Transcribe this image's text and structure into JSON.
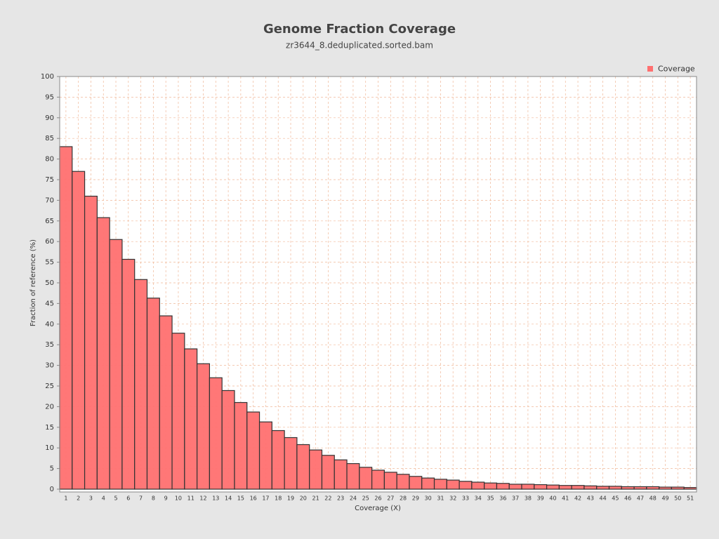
{
  "chart_data": {
    "type": "bar",
    "title": "Genome Fraction Coverage",
    "subtitle": "zr3644_8.deduplicated.sorted.bam",
    "x_label": "Coverage (X)",
    "y_label": "Fraction of reference (%)",
    "categories": [
      "1",
      "2",
      "3",
      "4",
      "5",
      "6",
      "7",
      "8",
      "9",
      "10",
      "11",
      "12",
      "13",
      "14",
      "15",
      "16",
      "17",
      "18",
      "19",
      "20",
      "21",
      "22",
      "23",
      "24",
      "25",
      "26",
      "27",
      "28",
      "29",
      "30",
      "31",
      "32",
      "33",
      "34",
      "35",
      "36",
      "37",
      "38",
      "39",
      "40",
      "41",
      "42",
      "43",
      "44",
      "45",
      "46",
      "47",
      "48",
      "49",
      "50",
      "51"
    ],
    "series": [
      {
        "name": "Coverage",
        "color": "#ff7070",
        "values": [
          83,
          77,
          71,
          65.8,
          60.5,
          55.7,
          50.8,
          46.3,
          42,
          37.8,
          34,
          30.4,
          27,
          23.9,
          21,
          18.7,
          16.3,
          14.2,
          12.5,
          10.8,
          9.5,
          8.2,
          7.1,
          6.2,
          5.3,
          4.6,
          4.1,
          3.6,
          3.1,
          2.7,
          2.4,
          2.2,
          1.9,
          1.7,
          1.5,
          1.4,
          1.2,
          1.2,
          1.1,
          1.0,
          0.9,
          0.9,
          0.8,
          0.7,
          0.7,
          0.6,
          0.6,
          0.6,
          0.5,
          0.5,
          0.4
        ]
      }
    ],
    "ylim": [
      0,
      100
    ],
    "yticks": [
      0,
      5,
      10,
      15,
      20,
      25,
      30,
      35,
      40,
      45,
      50,
      55,
      60,
      65,
      70,
      75,
      80,
      85,
      90,
      95,
      100
    ],
    "grid": true,
    "legend": "top-right"
  }
}
